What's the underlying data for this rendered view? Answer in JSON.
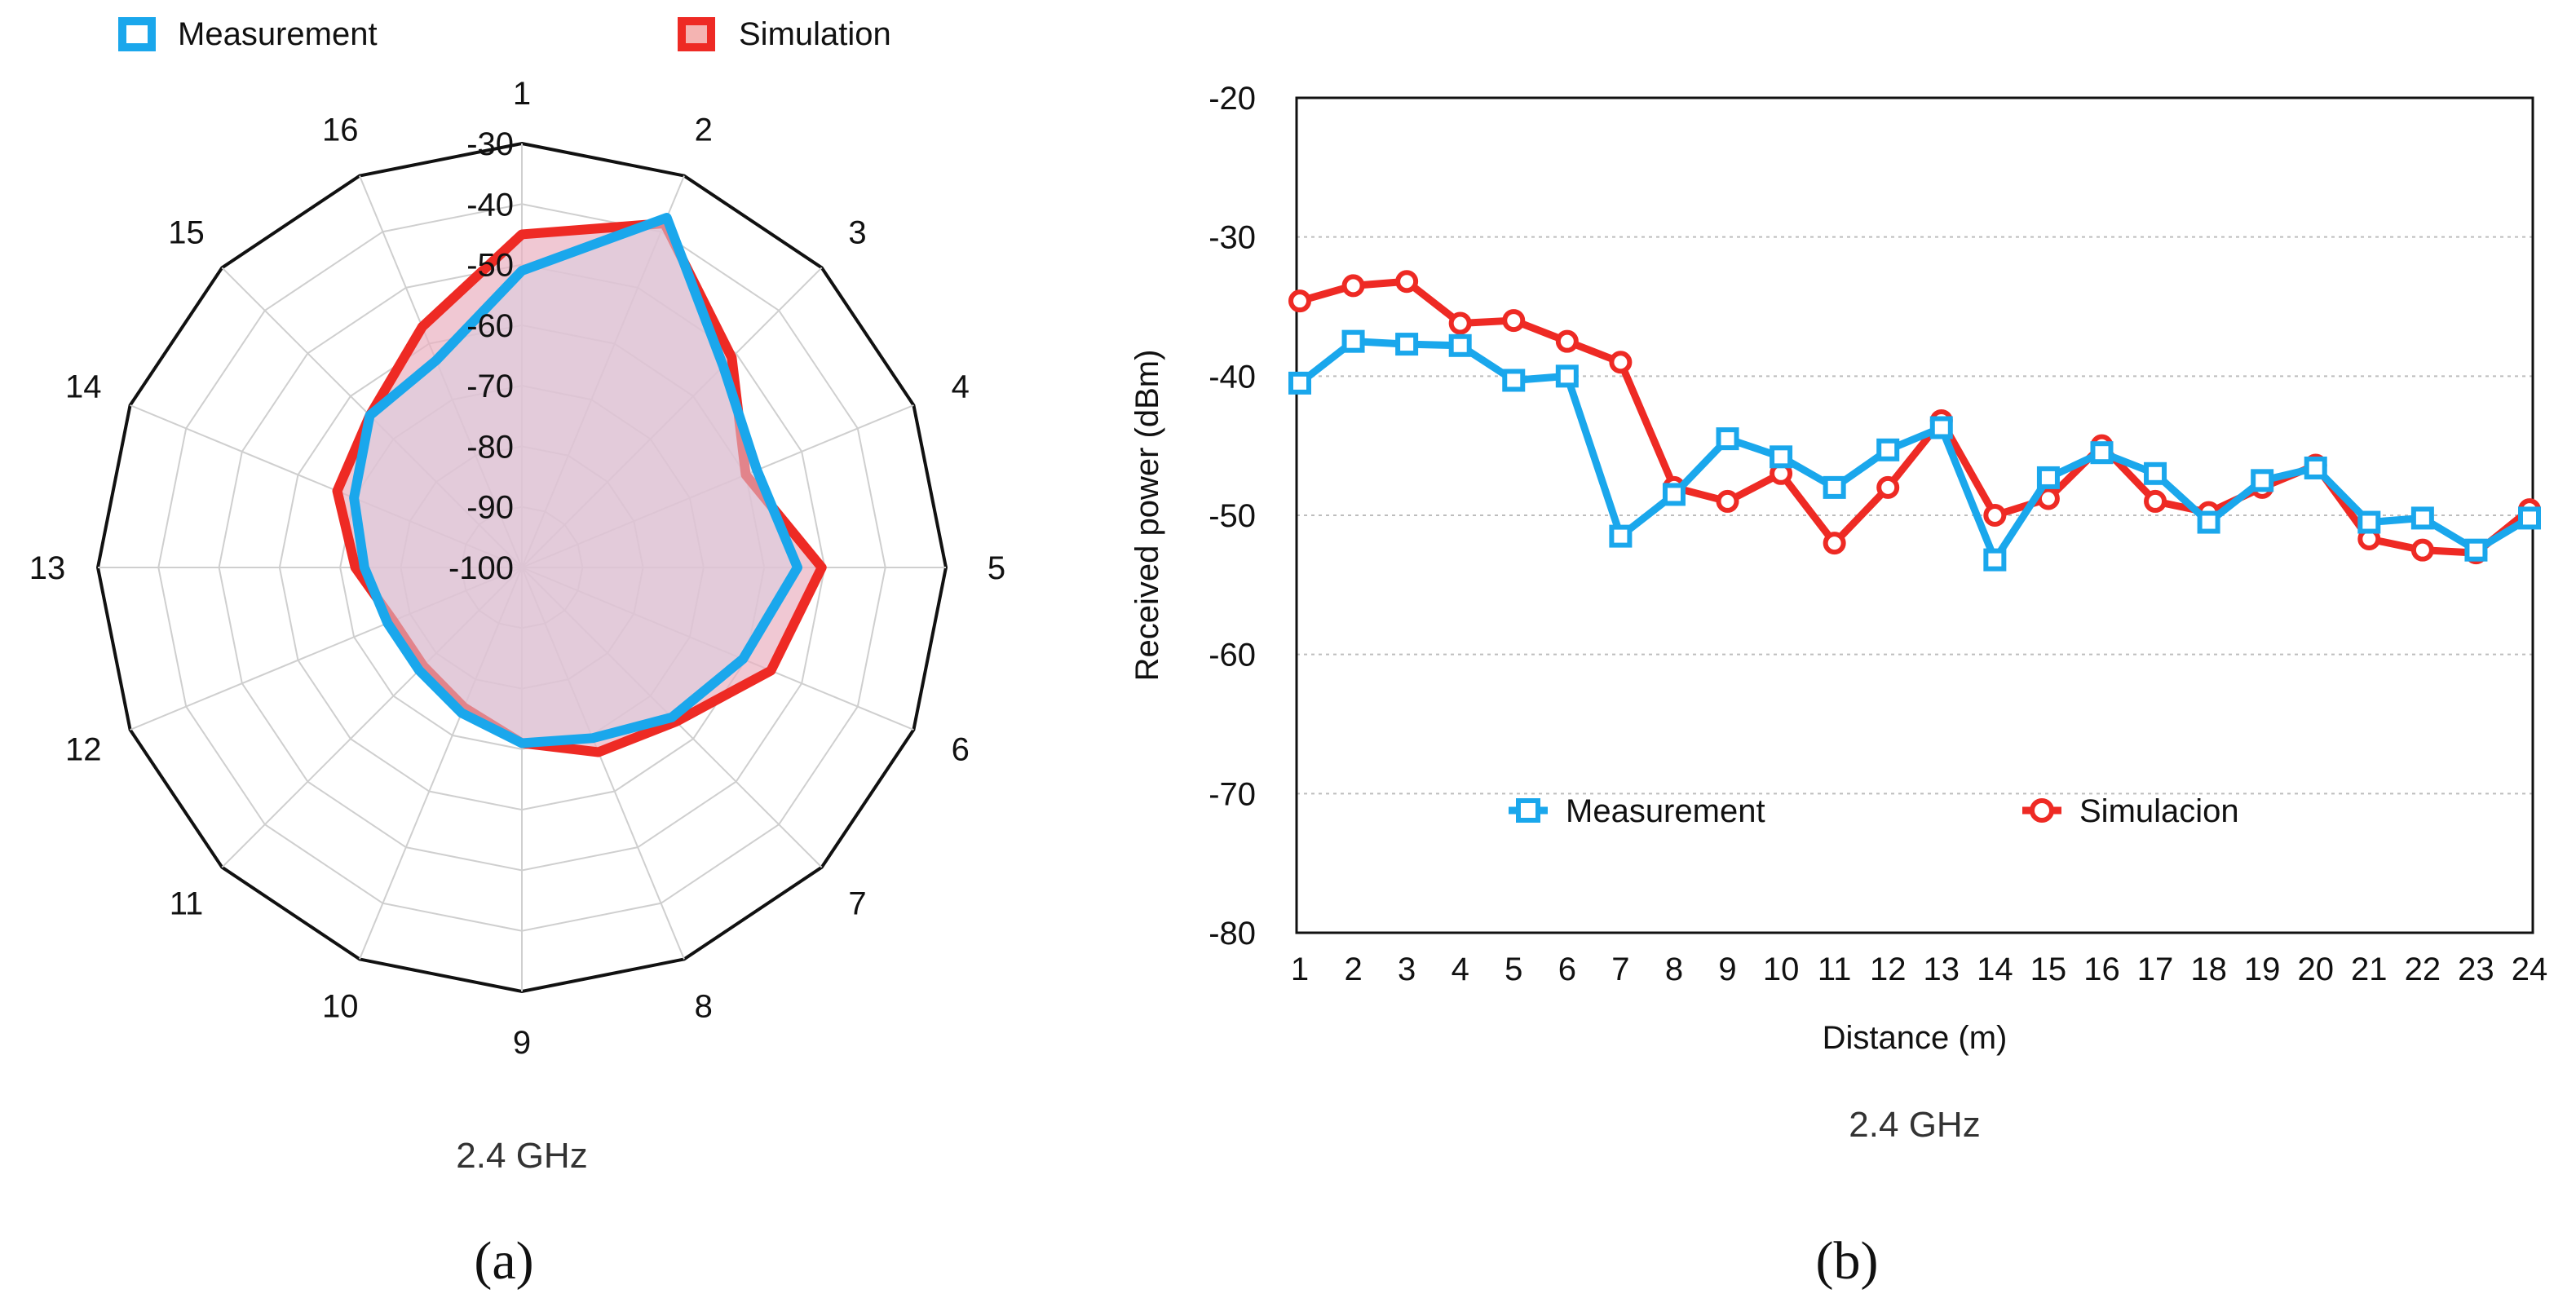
{
  "chart_data": [
    {
      "type": "radar",
      "caption": "2.4 GHz",
      "panel_label": "(a)",
      "categories": [
        "1",
        "2",
        "3",
        "4",
        "5",
        "6",
        "7",
        "8",
        "9",
        "10",
        "11",
        "12",
        "13",
        "14",
        "15",
        "16"
      ],
      "r_ticks": [
        "-30",
        "-40",
        "-50",
        "-60",
        "-70",
        "-80",
        "-90",
        "-100"
      ],
      "rlim": [
        -100,
        -30
      ],
      "grid": true,
      "legend_position": "top",
      "series": [
        {
          "name": "Measurement",
          "color": "#1aa7ec",
          "marker": "square",
          "values": [
            -51,
            -37.5,
            -53,
            -58,
            -54.5,
            -60.5,
            -65,
            -69.5,
            -71,
            -74,
            -76,
            -76,
            -74,
            -70,
            -64.5,
            -63
          ]
        },
        {
          "name": "Simulation",
          "color": "#ee2a24",
          "marker": "square",
          "values": [
            -45,
            -38.5,
            -51,
            -60,
            -50.5,
            -55.5,
            -64,
            -67,
            -71,
            -75,
            -77,
            -77,
            -72.5,
            -67,
            -64.5,
            -57
          ]
        }
      ]
    },
    {
      "type": "line",
      "caption": "2.4 GHz",
      "panel_label": "(b)",
      "xlabel": "Distance (m)",
      "ylabel": "Received power (dBm)",
      "x": [
        1,
        2,
        3,
        4,
        5,
        6,
        7,
        8,
        9,
        10,
        11,
        12,
        13,
        14,
        15,
        16,
        17,
        18,
        19,
        20,
        21,
        22,
        23,
        24
      ],
      "y_ticks": [
        "-20",
        "-30",
        "-40",
        "-50",
        "-60",
        "-70",
        "-80"
      ],
      "ylim": [
        -80,
        -20
      ],
      "grid": true,
      "legend_position": "lower-center",
      "series": [
        {
          "name": "Measurement",
          "color": "#1aa7ec",
          "marker": "square",
          "values": [
            -40.5,
            -37.5,
            -37.7,
            -37.8,
            -40.3,
            -40,
            -51.5,
            -48.5,
            -44.5,
            -45.8,
            -48,
            -45.3,
            -43.7,
            -53.2,
            -47.3,
            -45.5,
            -47,
            -50.5,
            -47.5,
            -46.6,
            -50.5,
            -50.2,
            -52.5,
            -50.2
          ]
        },
        {
          "name": "Simulacion",
          "color": "#ee2a24",
          "marker": "circle",
          "values": [
            -34.6,
            -33.5,
            -33.2,
            -36.2,
            -36,
            -37.5,
            -39,
            -48,
            -49,
            -47,
            -52,
            -48,
            -43.2,
            -50,
            -48.8,
            -45,
            -49,
            -49.8,
            -48,
            -46.4,
            -51.7,
            -52.5,
            -52.7,
            -49.6
          ]
        }
      ]
    }
  ]
}
